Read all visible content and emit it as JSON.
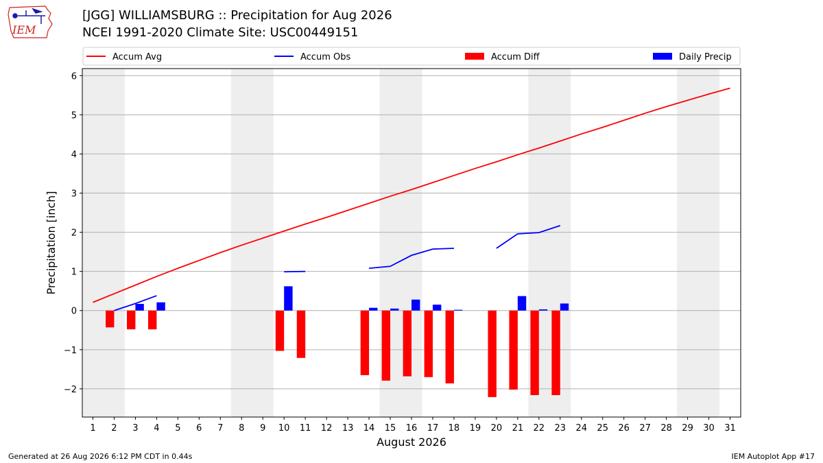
{
  "header": {
    "title_line1": "[JGG] WILLIAMSBURG :: Precipitation for Aug 2026",
    "title_line2": "NCEI 1991-2020 Climate Site: USC00449151"
  },
  "logo": {
    "text": "IEM",
    "color": "#cc2222"
  },
  "footer": {
    "left": "Generated at 26 Aug 2026 6:12 PM CDT in 0.44s",
    "right": "IEM Autoplot App #17"
  },
  "chart_data": {
    "type": "bar",
    "xlabel": "August 2026",
    "ylabel": "Precipitation [inch]",
    "xlim": [
      0.5,
      31.5
    ],
    "ylim": [
      -2.72,
      6.18
    ],
    "x_ticks": [
      1,
      2,
      3,
      4,
      5,
      6,
      7,
      8,
      9,
      10,
      11,
      12,
      13,
      14,
      15,
      16,
      17,
      18,
      19,
      20,
      21,
      22,
      23,
      24,
      25,
      26,
      27,
      28,
      29,
      30,
      31
    ],
    "y_ticks": [
      -2,
      -1,
      0,
      1,
      2,
      3,
      4,
      5,
      6
    ],
    "y_tick_labels": [
      "−2",
      "−1",
      "0",
      "1",
      "2",
      "3",
      "4",
      "5",
      "6"
    ],
    "grid": "horizontal",
    "weekend_shading": [
      [
        0.5,
        2.5
      ],
      [
        7.5,
        9.5
      ],
      [
        14.5,
        16.5
      ],
      [
        21.5,
        23.5
      ],
      [
        28.5,
        30.5
      ]
    ],
    "legend": {
      "placement": "top",
      "entries": [
        {
          "label": "Accum Avg",
          "kind": "line",
          "color": "#ff0000"
        },
        {
          "label": "Accum Obs",
          "kind": "line",
          "color": "#0000ff"
        },
        {
          "label": "Accum Diff",
          "kind": "bar",
          "color": "#ff0000"
        },
        {
          "label": "Daily Precip",
          "kind": "bar",
          "color": "#0000ff"
        }
      ]
    },
    "series": [
      {
        "name": "Accum Avg",
        "kind": "line",
        "color": "#ff0000",
        "x": [
          1,
          2,
          3,
          4,
          5,
          6,
          7,
          8,
          9,
          10,
          11,
          12,
          13,
          14,
          15,
          16,
          17,
          18,
          19,
          20,
          21,
          22,
          23,
          24,
          25,
          26,
          27,
          28,
          29,
          30,
          31
        ],
        "values": [
          0.21,
          0.43,
          0.65,
          0.87,
          1.08,
          1.28,
          1.48,
          1.67,
          1.85,
          2.03,
          2.21,
          2.38,
          2.56,
          2.74,
          2.92,
          3.09,
          3.27,
          3.45,
          3.63,
          3.8,
          3.98,
          4.15,
          4.33,
          4.51,
          4.68,
          4.86,
          5.04,
          5.21,
          5.37,
          5.53,
          5.68
        ]
      },
      {
        "name": "Accum Obs",
        "kind": "line",
        "color": "#0000ff",
        "segments": [
          {
            "x": [
              2,
              3,
              4
            ],
            "values": [
              0.0,
              0.18,
              0.38
            ]
          },
          {
            "x": [
              10,
              11
            ],
            "values": [
              0.99,
              1.0
            ]
          },
          {
            "x": [
              14,
              15,
              16,
              17,
              18
            ],
            "values": [
              1.08,
              1.13,
              1.41,
              1.57,
              1.59
            ]
          },
          {
            "x": [
              20,
              21,
              22,
              23
            ],
            "values": [
              1.59,
              1.96,
              1.99,
              2.17
            ]
          }
        ]
      },
      {
        "name": "Accum Diff",
        "kind": "bar",
        "color": "#ff0000",
        "x": [
          2,
          3,
          4,
          10,
          11,
          14,
          15,
          16,
          17,
          18,
          20,
          21,
          22,
          23
        ],
        "values": [
          -0.43,
          -0.48,
          -0.48,
          -1.03,
          -1.21,
          -1.65,
          -1.79,
          -1.68,
          -1.7,
          -1.86,
          -2.21,
          -2.02,
          -2.16,
          -2.16
        ]
      },
      {
        "name": "Daily Precip",
        "kind": "bar",
        "color": "#0000ff",
        "x": [
          3,
          4,
          10,
          14,
          15,
          16,
          17,
          18,
          21,
          22,
          23
        ],
        "values": [
          0.17,
          0.21,
          0.62,
          0.07,
          0.05,
          0.28,
          0.15,
          0.02,
          0.37,
          0.03,
          0.18
        ]
      }
    ]
  }
}
